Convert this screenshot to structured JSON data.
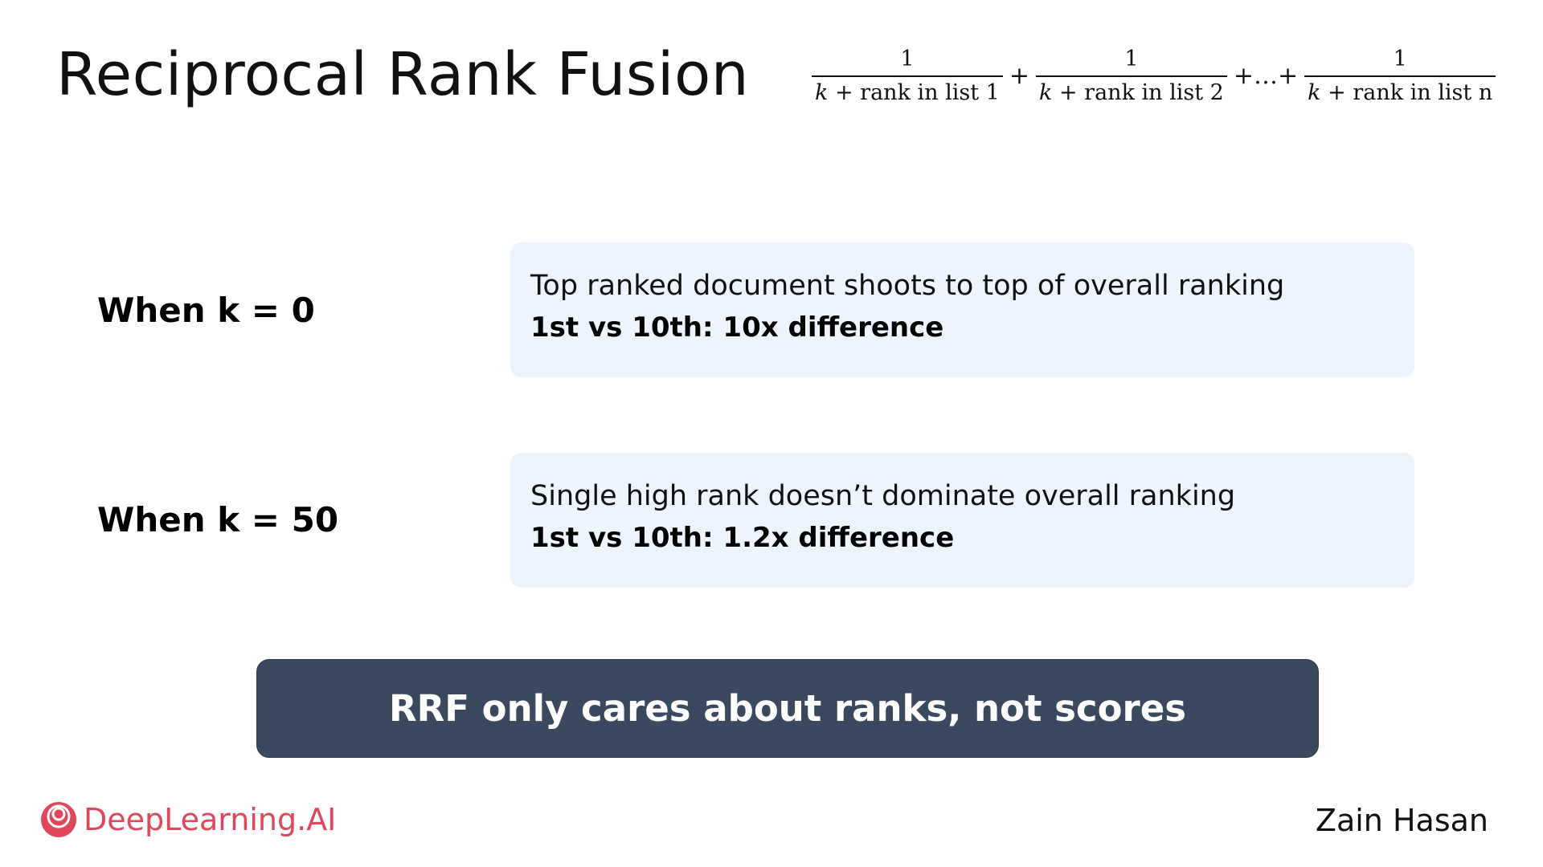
{
  "title": "Reciprocal Rank Fusion",
  "formula": {
    "numerator": "1",
    "term1_var": "k",
    "term1_rest": "+ rank in list 1",
    "plus1": "+",
    "term2_var": "k",
    "term2_rest": "+ rank in list 2",
    "ellipsis": "+…+",
    "term3_var": "k",
    "term3_rest": "+ rank in list n"
  },
  "rows": [
    {
      "label": "When k = 0",
      "line1": "Top ranked document shoots to top of overall ranking",
      "line2": "1st vs 10th:  10x difference"
    },
    {
      "label": "When k = 50",
      "line1": "Single high rank doesn’t dominate overall ranking",
      "line2": "1st vs 10th: 1.2x difference"
    }
  ],
  "banner": "RRF only cares about ranks, not scores",
  "brand": {
    "name": "DeepLearning.AI",
    "icon": "deeplearning-logo-icon",
    "color": "#e0475d"
  },
  "author": "Zain Hasan",
  "colors": {
    "card_bg": "#edf4fe",
    "banner_bg": "#3a495d"
  }
}
